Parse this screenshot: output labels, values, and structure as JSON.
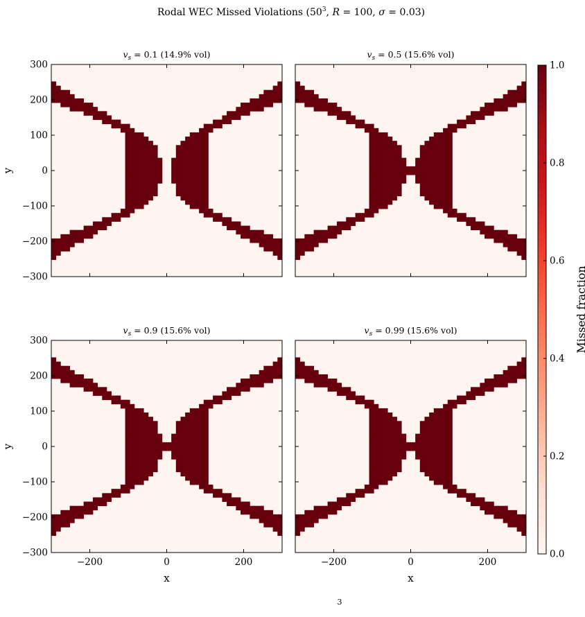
{
  "figure": {
    "suptitle": "Rodal WEC Missed Violations (50³, R = 100, σ = 0.03)",
    "caption_fragment": "3"
  },
  "colorbar": {
    "label": "Missed fraction",
    "ticks": [
      "0.0",
      "0.2",
      "0.4",
      "0.6",
      "0.8",
      "1.0"
    ],
    "tick_values": [
      0.0,
      0.2,
      0.4,
      0.6,
      0.8,
      1.0
    ],
    "range": [
      0.0,
      1.0
    ],
    "colormap": "Reds",
    "color_min": "#fff5f0",
    "color_max": "#67000d"
  },
  "axes": {
    "xlabel": "x",
    "ylabel": "y",
    "xlim": [
      -300,
      300
    ],
    "ylim": [
      -300,
      300
    ],
    "x_ticks": [
      "−200",
      "0",
      "200"
    ],
    "x_tick_values": [
      -200,
      0,
      200
    ],
    "y_ticks": [
      "300",
      "200",
      "100",
      "0",
      "−100",
      "−200",
      "−300"
    ],
    "y_tick_values": [
      300,
      200,
      100,
      0,
      -100,
      -200,
      -300
    ]
  },
  "chart_data": [
    {
      "type": "heatmap",
      "title": "v_s = 0.1 (14.9% vol)",
      "vs": 0.1,
      "volume_fraction_pct": 14.9,
      "grid": 50,
      "R": 100,
      "sigma": 0.03,
      "throat_closed": false,
      "values_missed": "binary (0 or 1)",
      "x_range": [
        -300,
        300
      ],
      "y_range": [
        -300,
        300
      ]
    },
    {
      "type": "heatmap",
      "title": "v_s = 0.5 (15.6% vol)",
      "vs": 0.5,
      "volume_fraction_pct": 15.6,
      "grid": 50,
      "R": 100,
      "sigma": 0.03,
      "throat_closed": true,
      "values_missed": "binary (0 or 1)",
      "x_range": [
        -300,
        300
      ],
      "y_range": [
        -300,
        300
      ]
    },
    {
      "type": "heatmap",
      "title": "v_s = 0.9 (15.6% vol)",
      "vs": 0.9,
      "volume_fraction_pct": 15.6,
      "grid": 50,
      "R": 100,
      "sigma": 0.03,
      "throat_closed": true,
      "values_missed": "binary (0 or 1)",
      "x_range": [
        -300,
        300
      ],
      "y_range": [
        -300,
        300
      ]
    },
    {
      "type": "heatmap",
      "title": "v_s = 0.99 (15.6% vol)",
      "vs": 0.99,
      "volume_fraction_pct": 15.6,
      "grid": 50,
      "R": 100,
      "sigma": 0.03,
      "throat_closed": true,
      "values_missed": "binary (0 or 1)",
      "x_range": [
        -300,
        300
      ],
      "y_range": [
        -300,
        300
      ]
    }
  ]
}
